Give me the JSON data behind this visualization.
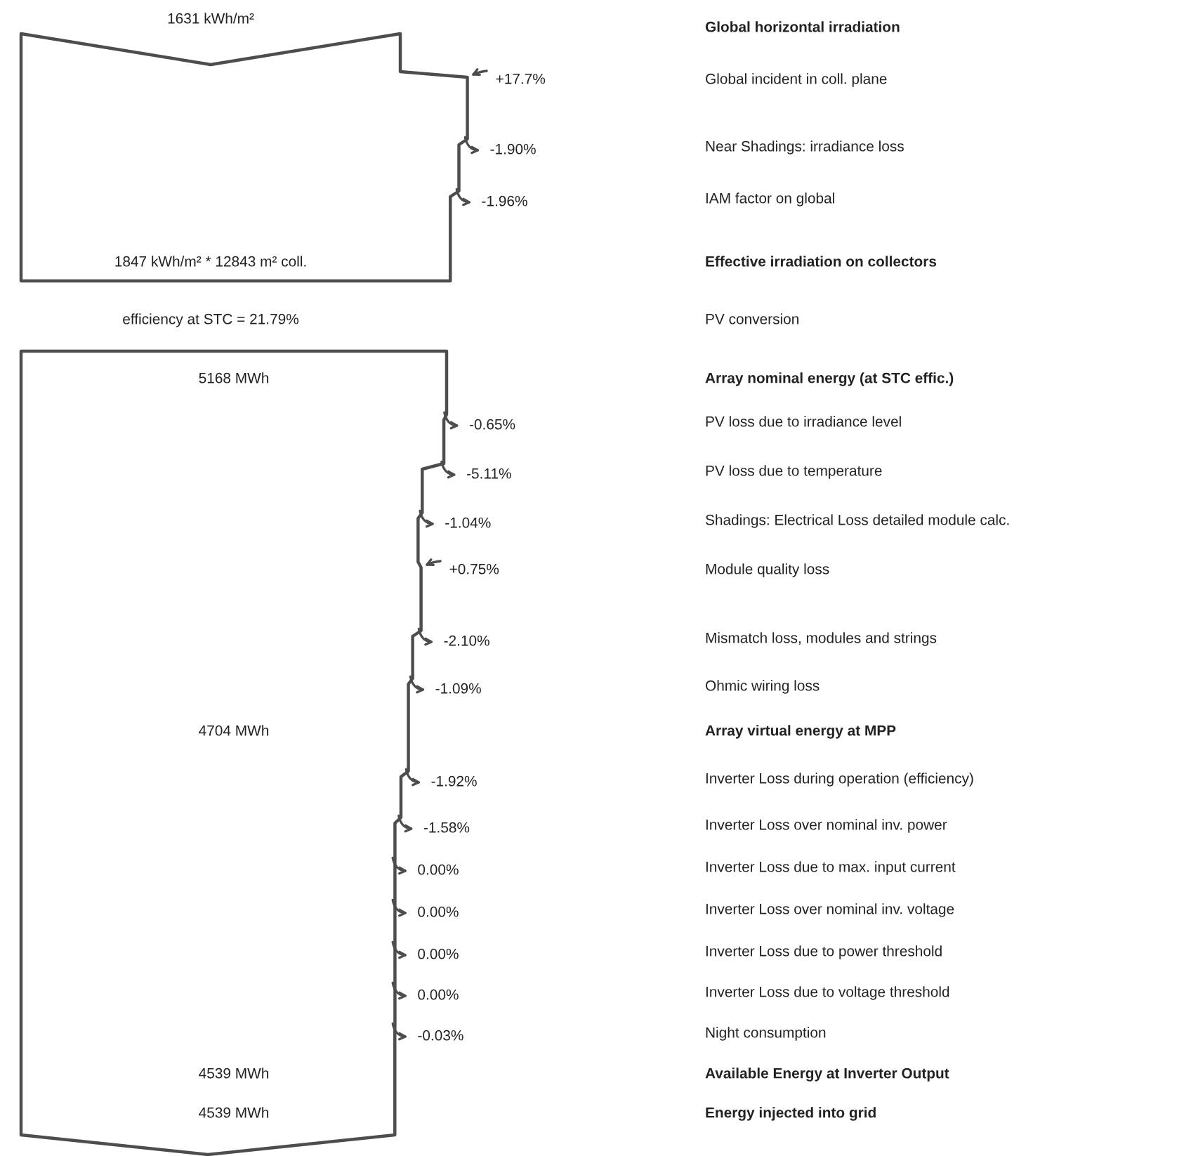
{
  "chart_data": {
    "type": "other",
    "categories": [
      "Global horizontal irradiation",
      "Global incident in coll. plane",
      "Near Shadings: irradiance loss",
      "IAM factor on global",
      "Effective irradiation on collectors",
      "PV conversion",
      "Array nominal energy (at STC effic.)",
      "PV loss due to irradiance level",
      "PV loss due to temperature",
      "Shadings: Electrical Loss detailed module calc.",
      "Module quality loss",
      "Mismatch loss, modules and strings",
      "Ohmic wiring loss",
      "Array virtual energy at MPP",
      "Inverter Loss during operation (efficiency)",
      "Inverter Loss over nominal inv. power",
      "Inverter Loss due to max. input current",
      "Inverter Loss over nominal inv. voltage",
      "Inverter Loss due to power threshold",
      "Inverter Loss due to voltage threshold",
      "Night consumption",
      "Available Energy at Inverter Output",
      "Energy injected into grid"
    ],
    "series": [
      {
        "color": "#4d4d4d",
        "values": [
          1631,
          null,
          null,
          null,
          1847,
          21.79,
          5168,
          null,
          null,
          null,
          null,
          null,
          null,
          4704,
          null,
          null,
          null,
          null,
          null,
          null,
          null,
          4539,
          4539
        ],
        "value_labels": [
          "1631 kWh/m²",
          null,
          null,
          null,
          "1847 kWh/m² * 12843 m² coll.",
          "efficiency at STC = 21.79%",
          "5168 MWh",
          null,
          null,
          null,
          null,
          null,
          null,
          "4704 MWh",
          null,
          null,
          null,
          null,
          null,
          null,
          null,
          "4539 MWh",
          "4539 MWh"
        ]
      },
      {
        "color": "#4d4d4d",
        "values": [
          null,
          17.7,
          -1.9,
          -1.96,
          null,
          null,
          null,
          -0.65,
          -5.11,
          -1.04,
          0.75,
          -2.1,
          -1.09,
          null,
          -1.92,
          -1.58,
          0,
          0,
          0,
          0,
          -0.03,
          null,
          null
        ],
        "value_labels": [
          null,
          "+17.7%",
          "-1.90%",
          "-1.96%",
          null,
          null,
          null,
          "-0.65%",
          "-5.11%",
          "-1.04%",
          "+0.75%",
          "-2.10%",
          "-1.09%",
          null,
          "-1.92%",
          "-1.58%",
          "0.00%",
          "0.00%",
          "0.00%",
          "0.00%",
          "-0.03%",
          null,
          null
        ]
      }
    ]
  }
}
